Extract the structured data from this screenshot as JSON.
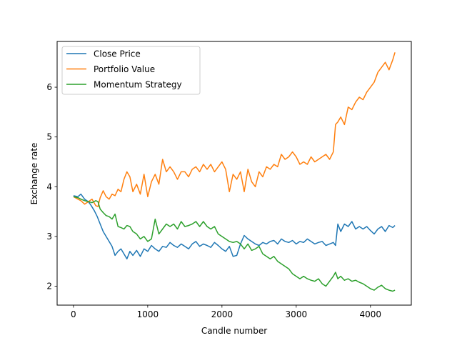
{
  "chart_data": {
    "type": "line",
    "title": "",
    "xlabel": "Candle number",
    "ylabel": "Exchange rate",
    "xlim": [
      -220,
      4550
    ],
    "ylim": [
      1.62,
      6.92
    ],
    "xticks": [
      0,
      1000,
      2000,
      3000,
      4000
    ],
    "yticks": [
      2,
      3,
      4,
      5,
      6
    ],
    "grid": false,
    "legend_position": "upper-left",
    "series": [
      {
        "name": "Close Price",
        "color": "#1f77b4",
        "x": [
          0,
          60,
          100,
          150,
          200,
          240,
          280,
          320,
          360,
          400,
          440,
          480,
          520,
          560,
          600,
          640,
          680,
          720,
          760,
          800,
          850,
          900,
          950,
          1000,
          1050,
          1100,
          1150,
          1200,
          1250,
          1300,
          1350,
          1400,
          1450,
          1500,
          1550,
          1600,
          1650,
          1700,
          1750,
          1800,
          1850,
          1900,
          1950,
          2000,
          2050,
          2100,
          2150,
          2200,
          2250,
          2300,
          2350,
          2400,
          2450,
          2500,
          2550,
          2600,
          2650,
          2700,
          2750,
          2800,
          2850,
          2900,
          2950,
          3000,
          3050,
          3100,
          3150,
          3200,
          3250,
          3300,
          3350,
          3400,
          3450,
          3500,
          3530,
          3560,
          3600,
          3650,
          3700,
          3750,
          3800,
          3850,
          3900,
          3950,
          4000,
          4050,
          4100,
          4150,
          4200,
          4250,
          4300,
          4330
        ],
        "values": [
          3.82,
          3.8,
          3.85,
          3.75,
          3.7,
          3.62,
          3.52,
          3.4,
          3.25,
          3.1,
          3.0,
          2.9,
          2.8,
          2.62,
          2.7,
          2.75,
          2.65,
          2.55,
          2.7,
          2.62,
          2.72,
          2.6,
          2.75,
          2.7,
          2.82,
          2.75,
          2.7,
          2.8,
          2.78,
          2.88,
          2.82,
          2.78,
          2.85,
          2.8,
          2.75,
          2.85,
          2.9,
          2.8,
          2.85,
          2.82,
          2.78,
          2.88,
          2.82,
          2.75,
          2.7,
          2.8,
          2.6,
          2.62,
          2.85,
          3.02,
          2.95,
          2.9,
          2.85,
          2.82,
          2.88,
          2.85,
          2.9,
          2.92,
          2.85,
          2.95,
          2.9,
          2.88,
          2.92,
          2.85,
          2.9,
          2.88,
          2.95,
          2.9,
          2.85,
          2.88,
          2.9,
          2.82,
          2.85,
          2.88,
          2.82,
          3.25,
          3.1,
          3.25,
          3.2,
          3.3,
          3.15,
          3.2,
          3.15,
          3.2,
          3.12,
          3.05,
          3.15,
          3.2,
          3.1,
          3.22,
          3.18,
          3.22
        ]
      },
      {
        "name": "Portfolio Value",
        "color": "#ff7f0e",
        "x": [
          0,
          60,
          100,
          150,
          200,
          250,
          300,
          330,
          360,
          400,
          440,
          480,
          520,
          560,
          600,
          640,
          680,
          720,
          760,
          800,
          850,
          900,
          950,
          1000,
          1050,
          1100,
          1150,
          1200,
          1250,
          1300,
          1350,
          1400,
          1450,
          1500,
          1550,
          1600,
          1650,
          1700,
          1750,
          1800,
          1850,
          1900,
          1950,
          2000,
          2050,
          2100,
          2150,
          2200,
          2250,
          2300,
          2350,
          2400,
          2450,
          2500,
          2550,
          2600,
          2650,
          2700,
          2750,
          2800,
          2850,
          2900,
          2950,
          3000,
          3050,
          3100,
          3150,
          3200,
          3250,
          3300,
          3350,
          3400,
          3450,
          3500,
          3530,
          3560,
          3600,
          3650,
          3700,
          3750,
          3800,
          3850,
          3900,
          3950,
          4000,
          4050,
          4100,
          4150,
          4200,
          4250,
          4300,
          4330
        ],
        "values": [
          3.8,
          3.75,
          3.72,
          3.65,
          3.7,
          3.75,
          3.62,
          3.6,
          3.78,
          3.92,
          3.8,
          3.75,
          3.85,
          3.82,
          3.95,
          3.9,
          4.15,
          4.3,
          4.2,
          3.9,
          4.05,
          3.85,
          4.25,
          3.8,
          4.1,
          4.25,
          4.05,
          4.55,
          4.3,
          4.4,
          4.3,
          4.15,
          4.3,
          4.3,
          4.2,
          4.35,
          4.4,
          4.3,
          4.45,
          4.35,
          4.45,
          4.3,
          4.4,
          4.5,
          4.35,
          3.9,
          4.25,
          4.15,
          4.3,
          3.9,
          4.35,
          4.1,
          4.0,
          4.3,
          4.2,
          4.4,
          4.35,
          4.45,
          4.4,
          4.65,
          4.55,
          4.6,
          4.7,
          4.6,
          4.45,
          4.5,
          4.45,
          4.6,
          4.5,
          4.55,
          4.6,
          4.65,
          4.55,
          4.7,
          5.25,
          5.3,
          5.4,
          5.25,
          5.6,
          5.55,
          5.7,
          5.8,
          5.75,
          5.9,
          6.0,
          6.1,
          6.3,
          6.4,
          6.5,
          6.35,
          6.55,
          6.7
        ]
      },
      {
        "name": "Momentum Strategy",
        "color": "#2ca02c",
        "x": [
          0,
          60,
          100,
          150,
          200,
          250,
          300,
          330,
          360,
          400,
          440,
          480,
          520,
          560,
          600,
          640,
          680,
          720,
          760,
          800,
          850,
          900,
          950,
          1000,
          1050,
          1100,
          1150,
          1200,
          1250,
          1300,
          1350,
          1400,
          1450,
          1500,
          1550,
          1600,
          1650,
          1700,
          1750,
          1800,
          1850,
          1900,
          1950,
          2000,
          2050,
          2100,
          2150,
          2200,
          2250,
          2300,
          2350,
          2400,
          2450,
          2500,
          2550,
          2600,
          2650,
          2700,
          2750,
          2800,
          2850,
          2900,
          2950,
          3000,
          3050,
          3100,
          3150,
          3200,
          3250,
          3300,
          3350,
          3400,
          3450,
          3500,
          3530,
          3560,
          3600,
          3650,
          3700,
          3750,
          3800,
          3850,
          3900,
          3950,
          4000,
          4050,
          4100,
          4150,
          4200,
          4250,
          4300,
          4330
        ],
        "values": [
          3.8,
          3.78,
          3.75,
          3.72,
          3.7,
          3.68,
          3.72,
          3.7,
          3.55,
          3.48,
          3.42,
          3.4,
          3.35,
          3.45,
          3.2,
          3.18,
          3.15,
          3.22,
          3.2,
          3.1,
          3.05,
          2.95,
          3.0,
          2.9,
          2.95,
          3.35,
          3.05,
          3.15,
          3.25,
          3.2,
          3.25,
          3.15,
          3.3,
          3.2,
          3.22,
          3.25,
          3.3,
          3.2,
          3.3,
          3.2,
          3.15,
          3.2,
          3.05,
          3.0,
          2.95,
          2.9,
          2.88,
          2.9,
          2.85,
          2.75,
          2.85,
          2.72,
          2.75,
          2.8,
          2.65,
          2.6,
          2.55,
          2.6,
          2.5,
          2.45,
          2.4,
          2.35,
          2.25,
          2.2,
          2.15,
          2.2,
          2.15,
          2.12,
          2.1,
          2.15,
          2.05,
          2.0,
          2.1,
          2.2,
          2.28,
          2.15,
          2.2,
          2.12,
          2.15,
          2.1,
          2.12,
          2.08,
          2.05,
          2.0,
          1.95,
          1.92,
          1.98,
          2.02,
          1.95,
          1.92,
          1.9,
          1.92
        ]
      }
    ]
  }
}
